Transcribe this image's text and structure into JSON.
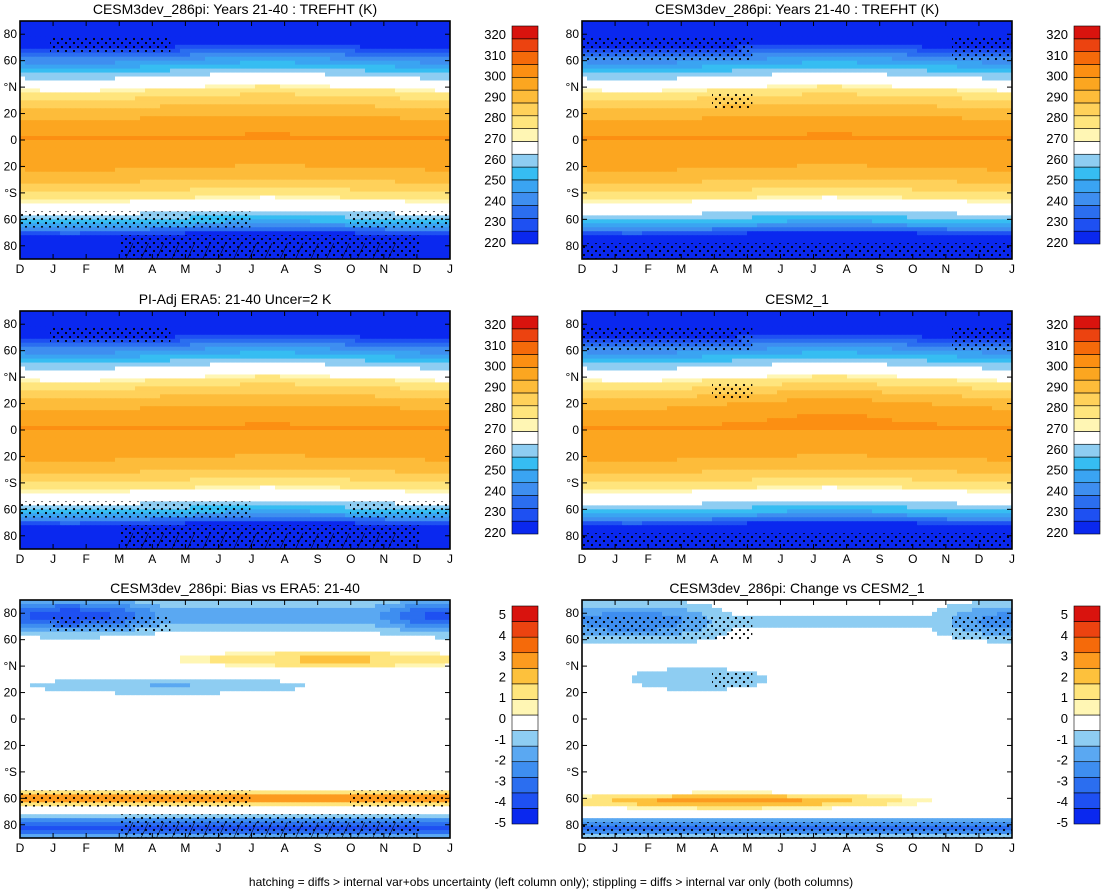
{
  "footnote": "hatching = diffs > internal var+obs uncertainty (left column only); stippling = diffs > internal var only (both columns)",
  "colors": {
    "abs": [
      "#0a28ef",
      "#1e50f2",
      "#2b6ef0",
      "#3e8ef0",
      "#3aa4f2",
      "#36bdf2",
      "#8ecdf2",
      "#ffffff",
      "#fff6b4",
      "#ffe57d",
      "#ffd15a",
      "#fdbc3a",
      "#fca620",
      "#fc8f12",
      "#f56a0a",
      "#ec4310",
      "#d9130e"
    ],
    "diff": [
      "#0a28ef",
      "#1e50f2",
      "#2b6ef0",
      "#3e8ef0",
      "#5aa8f2",
      "#8ecdf2",
      "#ffffff",
      "#fff6b4",
      "#ffe57d",
      "#fdc13c",
      "#fc9b1f",
      "#f56a0a",
      "#ec4310",
      "#d9130e"
    ]
  },
  "chart_data": [
    {
      "id": "p1",
      "type": "contour",
      "title": "CESM3dev_286pi: Years 21-40 : TREFHT (K)",
      "xticks": [
        "D",
        "J",
        "F",
        "M",
        "A",
        "M",
        "J",
        "J",
        "A",
        "S",
        "O",
        "N",
        "D",
        "J"
      ],
      "yticks": [
        "80",
        "60",
        "°N",
        "20",
        "0",
        "20",
        "°S",
        "60",
        "80"
      ],
      "colorbar": {
        "labels": [
          "320",
          "310",
          "300",
          "290",
          "280",
          "270",
          "260",
          "250",
          "240",
          "230",
          "220"
        ],
        "levels": [
          215,
          220,
          225,
          230,
          235,
          240,
          245,
          250,
          255,
          260,
          265,
          270,
          275,
          280,
          285,
          290,
          295,
          300,
          305,
          310,
          315,
          320,
          325
        ]
      },
      "field": "abs",
      "stipple": "abs",
      "hatch": true
    },
    {
      "id": "p2",
      "type": "contour",
      "title": "CESM3dev_286pi: Years 21-40 : TREFHT (K)",
      "xticks": [
        "D",
        "J",
        "F",
        "M",
        "A",
        "M",
        "J",
        "J",
        "A",
        "S",
        "O",
        "N",
        "D",
        "J"
      ],
      "yticks": [
        "80",
        "60",
        "°N",
        "20",
        "0",
        "20",
        "°S",
        "60",
        "80"
      ],
      "colorbar": {
        "labels": [
          "320",
          "310",
          "300",
          "290",
          "280",
          "270",
          "260",
          "250",
          "240",
          "230",
          "220"
        ],
        "levels": [
          215,
          220,
          225,
          230,
          235,
          240,
          245,
          250,
          255,
          260,
          265,
          270,
          275,
          280,
          285,
          290,
          295,
          300,
          305,
          310,
          315,
          320,
          325
        ]
      },
      "field": "abs",
      "stipple": "right",
      "hatch": false
    },
    {
      "id": "p3",
      "type": "contour",
      "title": "PI-Adj ERA5: 21-40 Uncer=2 K",
      "xticks": [
        "D",
        "J",
        "F",
        "M",
        "A",
        "M",
        "J",
        "J",
        "A",
        "S",
        "O",
        "N",
        "D",
        "J"
      ],
      "yticks": [
        "80",
        "60",
        "°N",
        "20",
        "0",
        "20",
        "°S",
        "60",
        "80"
      ],
      "colorbar": {
        "labels": [
          "320",
          "310",
          "300",
          "290",
          "280",
          "270",
          "260",
          "250",
          "240",
          "230",
          "220"
        ],
        "levels": [
          215,
          220,
          225,
          230,
          235,
          240,
          245,
          250,
          255,
          260,
          265,
          270,
          275,
          280,
          285,
          290,
          295,
          300,
          305,
          310,
          315,
          320,
          325
        ]
      },
      "field": "abs",
      "stipple": "abs",
      "hatch": true
    },
    {
      "id": "p4",
      "type": "contour",
      "title": "CESM2_1",
      "xticks": [
        "D",
        "J",
        "F",
        "M",
        "A",
        "M",
        "J",
        "J",
        "A",
        "S",
        "O",
        "N",
        "D",
        "J"
      ],
      "yticks": [
        "80",
        "60",
        "°N",
        "20",
        "0",
        "20",
        "°S",
        "60",
        "80"
      ],
      "colorbar": {
        "labels": [
          "320",
          "310",
          "300",
          "290",
          "280",
          "270",
          "260",
          "250",
          "240",
          "230",
          "220"
        ],
        "levels": [
          215,
          220,
          225,
          230,
          235,
          240,
          245,
          250,
          255,
          260,
          265,
          270,
          275,
          280,
          285,
          290,
          295,
          300,
          305,
          310,
          315,
          320,
          325
        ]
      },
      "field": "abs2",
      "stipple": "right",
      "hatch": false
    },
    {
      "id": "p5",
      "type": "contour",
      "title": "CESM3dev_286pi: Bias vs ERA5: 21-40",
      "xticks": [
        "D",
        "J",
        "F",
        "M",
        "A",
        "M",
        "J",
        "J",
        "A",
        "S",
        "O",
        "N",
        "D",
        "J"
      ],
      "yticks": [
        "80",
        "60",
        "°N",
        "20",
        "0",
        "20",
        "°S",
        "60",
        "80"
      ],
      "colorbar": {
        "labels": [
          "5",
          "4",
          "3",
          "2",
          "1",
          "0",
          "-1",
          "-2",
          "-3",
          "-4",
          "-5"
        ],
        "levels": [
          -5.5,
          -5,
          -4.5,
          -4,
          -3.5,
          -3,
          -2.5,
          -2,
          -1.5,
          -1,
          -0.5,
          0,
          0.5,
          1,
          1.5,
          2,
          2.5,
          3,
          3.5,
          4,
          4.5,
          5,
          5.5
        ]
      },
      "field": "bias",
      "stipple": "abs",
      "hatch": true
    },
    {
      "id": "p6",
      "type": "contour",
      "title": "CESM3dev_286pi: Change vs CESM2_1",
      "xticks": [
        "D",
        "J",
        "F",
        "M",
        "A",
        "M",
        "J",
        "J",
        "A",
        "S",
        "O",
        "N",
        "D",
        "J"
      ],
      "yticks": [
        "80",
        "60",
        "°N",
        "20",
        "0",
        "20",
        "°S",
        "60",
        "80"
      ],
      "colorbar": {
        "labels": [
          "5",
          "4",
          "3",
          "2",
          "1",
          "0",
          "-1",
          "-2",
          "-3",
          "-4",
          "-5"
        ],
        "levels": [
          -5.5,
          -5,
          -4.5,
          -4,
          -3.5,
          -3,
          -2.5,
          -2,
          -1.5,
          -1,
          -0.5,
          0,
          0.5,
          1,
          1.5,
          2,
          2.5,
          3,
          3.5,
          4,
          4.5,
          5,
          5.5
        ]
      },
      "field": "change",
      "stipple": "right",
      "hatch": false
    }
  ]
}
